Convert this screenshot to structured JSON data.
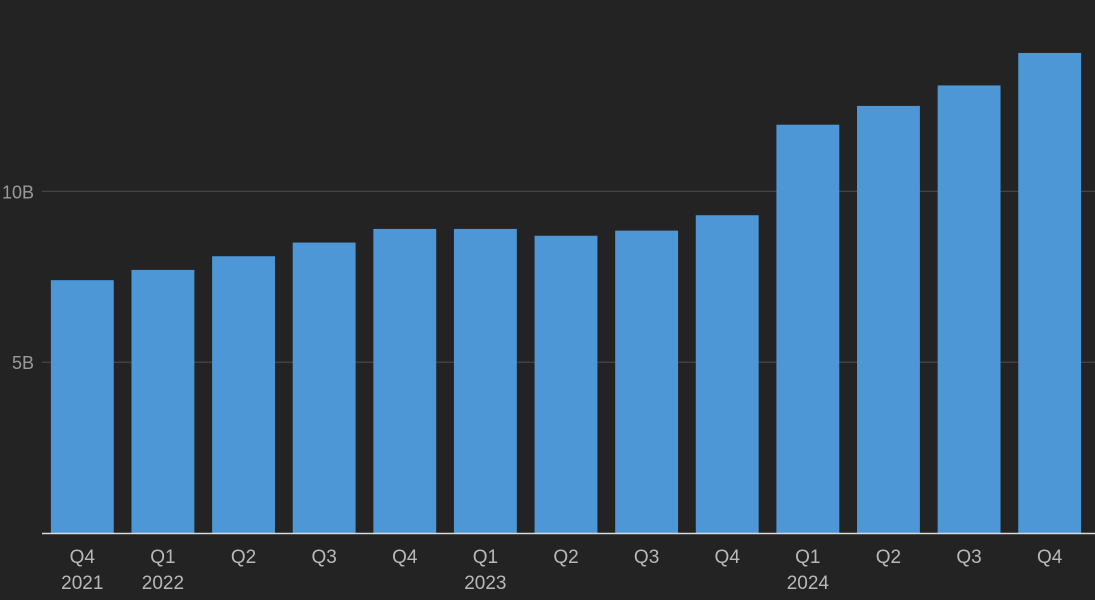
{
  "chart_data": {
    "type": "bar",
    "categories": [
      {
        "quarter": "Q4",
        "year": "2021"
      },
      {
        "quarter": "Q1",
        "year": "2022"
      },
      {
        "quarter": "Q2",
        "year": ""
      },
      {
        "quarter": "Q3",
        "year": ""
      },
      {
        "quarter": "Q4",
        "year": ""
      },
      {
        "quarter": "Q1",
        "year": "2023"
      },
      {
        "quarter": "Q2",
        "year": ""
      },
      {
        "quarter": "Q3",
        "year": ""
      },
      {
        "quarter": "Q4",
        "year": ""
      },
      {
        "quarter": "Q1",
        "year": "2024"
      },
      {
        "quarter": "Q2",
        "year": ""
      },
      {
        "quarter": "Q3",
        "year": ""
      },
      {
        "quarter": "Q4",
        "year": ""
      }
    ],
    "values": [
      7.4,
      7.7,
      8.1,
      8.5,
      8.9,
      8.9,
      8.7,
      8.85,
      9.3,
      11.95,
      12.5,
      13.1,
      14.05
    ],
    "unit": "B",
    "ylim": [
      0,
      15.6
    ],
    "yticks": [
      {
        "value": 5,
        "label": "5B"
      },
      {
        "value": 10,
        "label": "10B"
      }
    ],
    "grid": true,
    "title": "",
    "xlabel": "",
    "ylabel": "",
    "colors": {
      "background": "#232323",
      "bar": "#4d97d6",
      "gridline": "#4a4a4a",
      "baseline": "#d9d9d9",
      "tick_text": "#b8b8b8",
      "ytick_text": "#9a9a9a"
    }
  }
}
